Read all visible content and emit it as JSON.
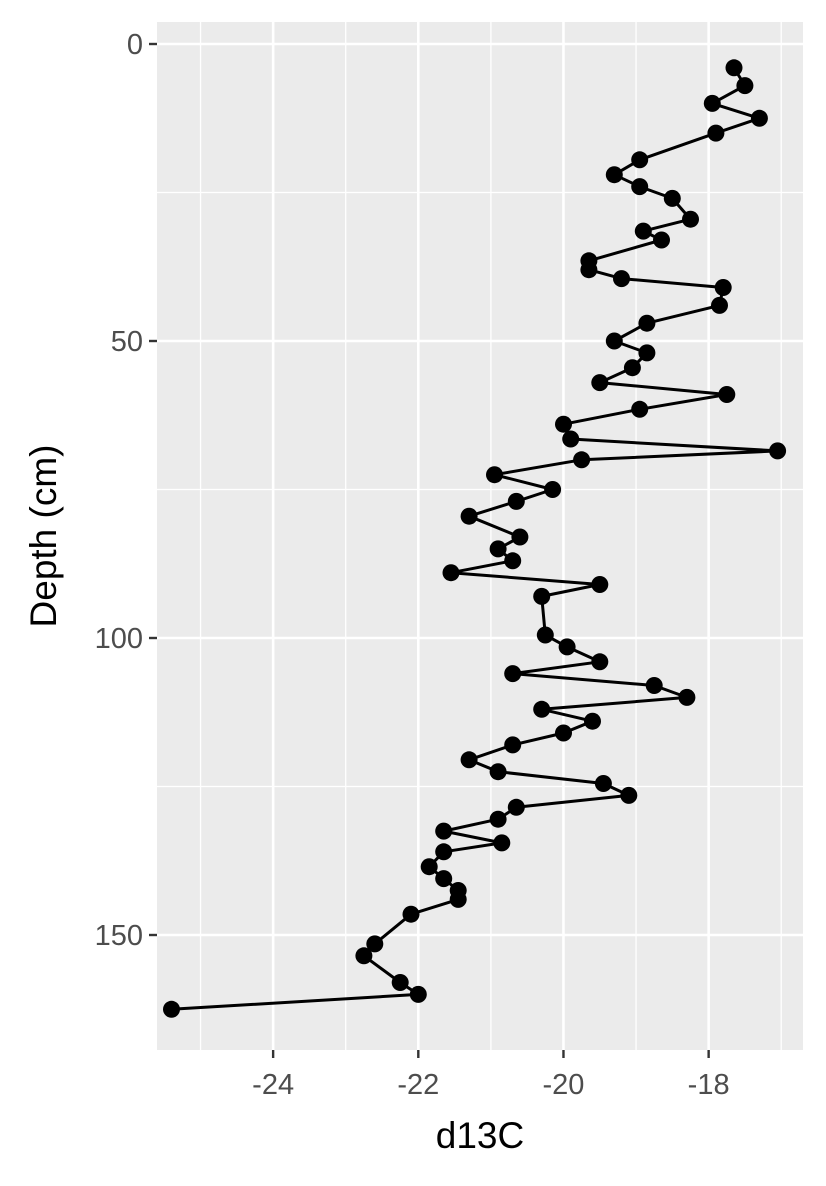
{
  "chart_data": {
    "type": "line",
    "title": "",
    "xlabel": "d13C",
    "ylabel": "Depth (cm)",
    "xlim": [
      -25.6,
      -16.7
    ],
    "ylim": [
      0,
      169
    ],
    "y_reversed": true,
    "x_ticks": [
      -24,
      -22,
      -20,
      -18
    ],
    "y_ticks": [
      0,
      50,
      100,
      150
    ],
    "x_tick_labels": [
      "-24",
      "-22",
      "-20",
      "-18"
    ],
    "y_tick_labels": [
      "0",
      "50",
      "100",
      "150"
    ],
    "grid": true,
    "legend": "none",
    "colors": {
      "panel": "#ebebeb",
      "grid": "#ffffff",
      "series": "#000000",
      "axis_text": "#4d4d4d",
      "title_text": "#000000"
    },
    "series": [
      {
        "x": [
          -17.65,
          -17.5,
          -17.95,
          -17.3,
          -17.9,
          -18.95,
          -19.3,
          -18.95,
          -18.5,
          -18.25,
          -18.9,
          -18.65,
          -19.65,
          -19.65,
          -19.2,
          -17.8,
          -17.85,
          -18.85,
          -19.3,
          -18.85,
          -19.05,
          -19.5,
          -17.75,
          -18.95,
          -20.0,
          -19.9,
          -17.05,
          -19.75,
          -20.95,
          -20.15,
          -20.65,
          -21.3,
          -20.6,
          -20.9,
          -20.7,
          -21.55,
          -19.5,
          -20.3,
          -20.25,
          -19.95,
          -19.5,
          -20.7,
          -18.75,
          -18.3,
          -20.3,
          -19.6,
          -20.0,
          -20.7,
          -21.3,
          -20.9,
          -19.45,
          -19.1,
          -20.65,
          -20.9,
          -21.65,
          -20.85,
          -21.65,
          -21.85,
          -21.65,
          -21.45,
          -21.45,
          -22.1,
          -22.6,
          -22.75,
          -22.25,
          -22.0,
          -25.4
        ],
        "y": [
          4,
          7,
          10,
          12.5,
          15,
          19.5,
          22,
          24,
          26,
          29.5,
          31.5,
          33,
          36.5,
          38,
          39.5,
          41,
          44,
          47,
          50,
          52,
          54.5,
          57,
          59,
          61.5,
          64,
          66.5,
          68.5,
          70,
          72.5,
          75,
          77,
          79.5,
          83,
          85,
          87,
          89,
          91,
          93,
          99.5,
          101.5,
          104,
          106,
          108,
          110,
          112,
          114,
          116,
          118,
          120.5,
          122.5,
          124.5,
          126.5,
          128.5,
          130.5,
          132.5,
          134.5,
          136,
          138.5,
          140.5,
          142.5,
          144,
          146.5,
          151.5,
          153.5,
          158,
          160,
          162.5
        ]
      }
    ]
  }
}
